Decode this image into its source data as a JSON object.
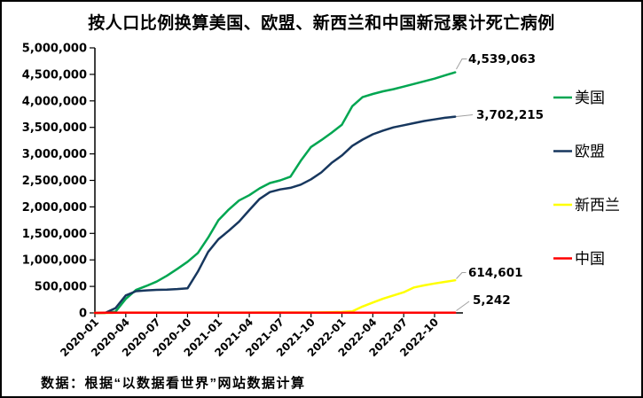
{
  "title": "按人口比例换算美国、欧盟、新西兰和中国新冠累计死亡病例",
  "source_note": "数据：根据“以数据看世界”网站数据计算",
  "chart_data": {
    "type": "line",
    "x": [
      "2020-01",
      "2020-02",
      "2020-03",
      "2020-04",
      "2020-05",
      "2020-06",
      "2020-07",
      "2020-08",
      "2020-09",
      "2020-10",
      "2020-11",
      "2020-12",
      "2021-01",
      "2021-02",
      "2021-03",
      "2021-04",
      "2021-05",
      "2021-06",
      "2021-07",
      "2021-08",
      "2021-09",
      "2021-10",
      "2021-11",
      "2021-12",
      "2022-01",
      "2022-02",
      "2022-03",
      "2022-04",
      "2022-05",
      "2022-06",
      "2022-07",
      "2022-08",
      "2022-09",
      "2022-10",
      "2022-11",
      "2022-12"
    ],
    "x_tick_labels": [
      "2020-01",
      "2020-04",
      "2020-07",
      "2020-10",
      "2021-01",
      "2021-04",
      "2021-07",
      "2021-10",
      "2022-01",
      "2022-04",
      "2022-07",
      "2022-10"
    ],
    "ylim": [
      0,
      5000000
    ],
    "y_tick_step": 500000,
    "grid": false,
    "legend_position": "right",
    "axis_color": "#000000",
    "leader_color": "#a0a0a0",
    "series": [
      {
        "name": "美国",
        "color": "#00A651",
        "end_label": "4,539,063",
        "values": [
          0,
          2000,
          21000,
          265000,
          433000,
          508000,
          590000,
          700000,
          830000,
          965000,
          1130000,
          1420000,
          1750000,
          1950000,
          2120000,
          2220000,
          2350000,
          2450000,
          2500000,
          2570000,
          2870000,
          3130000,
          3260000,
          3400000,
          3550000,
          3900000,
          4070000,
          4130000,
          4180000,
          4220000,
          4270000,
          4320000,
          4370000,
          4420000,
          4480000,
          4539063
        ]
      },
      {
        "name": "欧盟",
        "color": "#17375E",
        "end_label": "3,702,215",
        "values": [
          0,
          0,
          90000,
          330000,
          410000,
          425000,
          435000,
          440000,
          450000,
          465000,
          780000,
          1150000,
          1390000,
          1550000,
          1720000,
          1940000,
          2150000,
          2280000,
          2330000,
          2360000,
          2420000,
          2520000,
          2650000,
          2830000,
          2970000,
          3150000,
          3270000,
          3370000,
          3440000,
          3500000,
          3540000,
          3580000,
          3620000,
          3650000,
          3680000,
          3702215
        ]
      },
      {
        "name": "新西兰",
        "color": "#FFFF00",
        "end_label": "614,601",
        "values": [
          0,
          0,
          3000,
          6000,
          7000,
          7000,
          7000,
          7000,
          7000,
          7000,
          7000,
          7000,
          7000,
          7000,
          7000,
          7000,
          8000,
          8000,
          8000,
          8000,
          8000,
          9000,
          10000,
          14000,
          16000,
          30000,
          120000,
          195000,
          270000,
          330000,
          390000,
          480000,
          520000,
          555000,
          585000,
          614601
        ]
      },
      {
        "name": "中国",
        "color": "#FF0000",
        "end_label": "5,242",
        "values": [
          0,
          2900,
          3300,
          4600,
          4600,
          4600,
          4600,
          4700,
          4700,
          4700,
          4700,
          4800,
          4800,
          4800,
          4800,
          4800,
          4800,
          4800,
          4800,
          4800,
          4800,
          4800,
          4900,
          4900,
          4900,
          4900,
          4900,
          5000,
          5200,
          5200,
          5200,
          5200,
          5200,
          5200,
          5200,
          5242
        ]
      }
    ]
  }
}
